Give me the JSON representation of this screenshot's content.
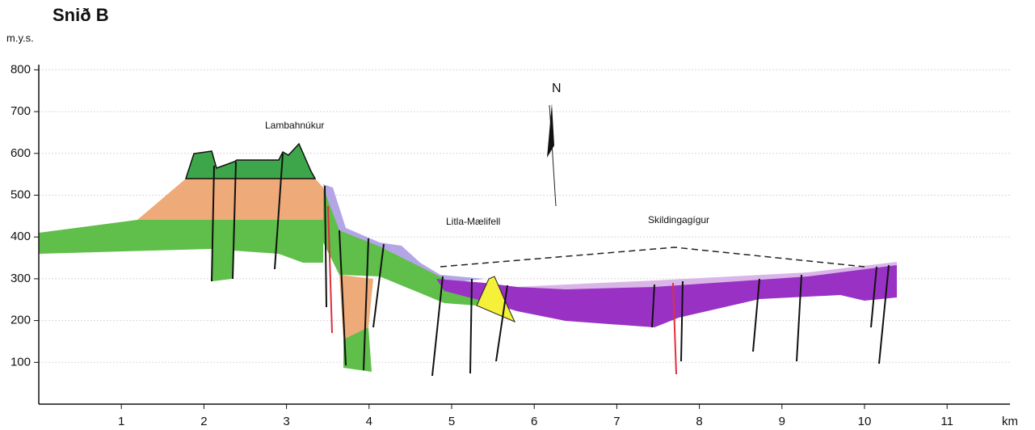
{
  "header": {
    "title": "Snið B",
    "y_unit": "m.y.s.",
    "x_unit": "km"
  },
  "axes": {
    "xlim": [
      0,
      11.8
    ],
    "xticks": [
      1,
      2,
      3,
      4,
      5,
      6,
      7,
      8,
      9,
      10,
      11
    ],
    "ylim": [
      0,
      820
    ],
    "yticks": [
      100,
      200,
      300,
      400,
      500,
      600,
      700,
      800
    ]
  },
  "labels": {
    "north": "N",
    "places": [
      "Lambahnúkur",
      "Litla-Mælifell",
      "Skildingagígur"
    ]
  }
}
